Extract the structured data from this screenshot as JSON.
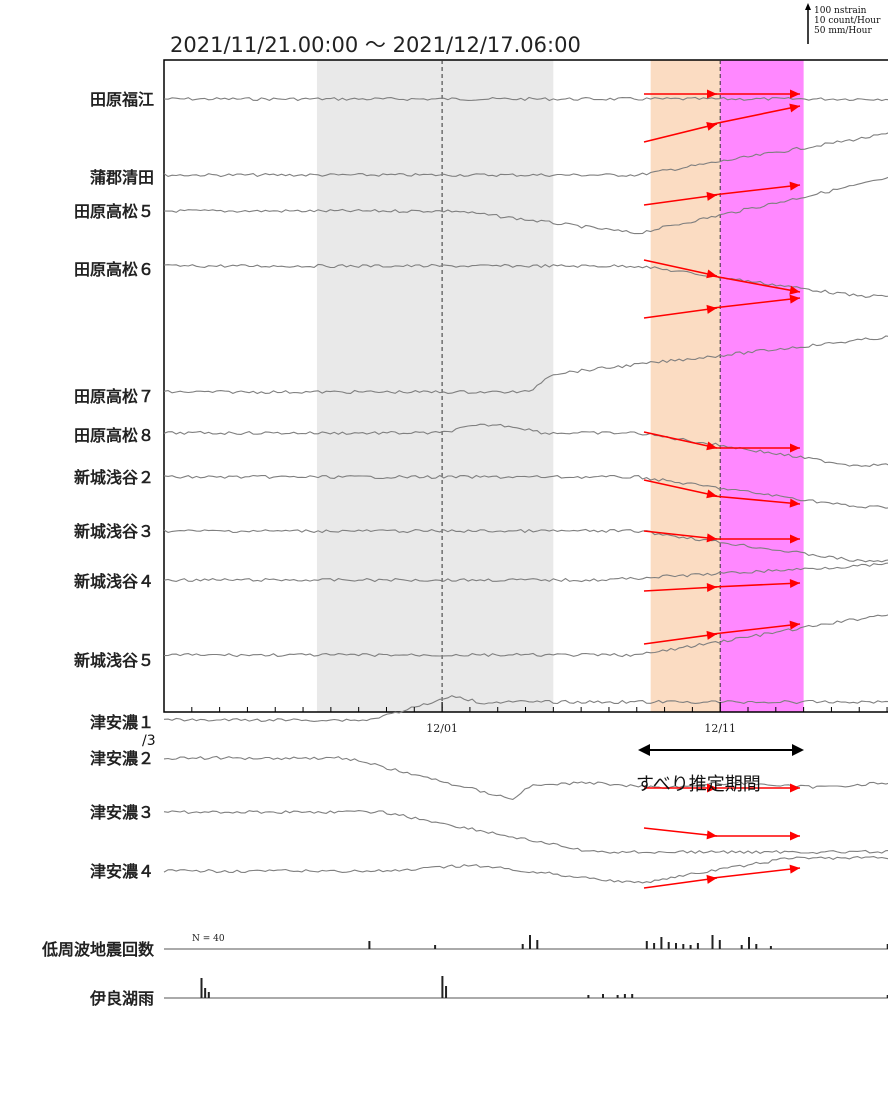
{
  "header": {
    "period": "2021/11/21.00:00 〜 2021/12/17.06:00",
    "scale_lines": [
      "100 nstrain",
      "10 count/Hour",
      "50 mm/Hour"
    ]
  },
  "footer": {
    "slip_period_label": "すべり推定期間"
  },
  "stray_mark": "/3",
  "colors": {
    "trace": "#7f7f7f",
    "gray_band": "#e9e9e9",
    "orange_band": "#fbdcc2",
    "magenta_band": "#ff88ff",
    "arrow": "#ff0000",
    "frame": "#000000"
  },
  "chart_data": {
    "type": "line",
    "time_range": [
      "2021-11-21 00:00",
      "2021-12-17 06:00"
    ],
    "x_ticks": [
      "12/01",
      "12/11"
    ],
    "highlight_periods": [
      {
        "name": "gray",
        "start": "2021-11-26 12:00",
        "end": "2021-12-05 00:00"
      },
      {
        "name": "orange",
        "start": "2021-12-08 12:00",
        "end": "2021-12-11 00:00"
      },
      {
        "name": "magenta",
        "start": "2021-12-11 00:00",
        "end": "2021-12-14 00:00"
      }
    ],
    "dashed_marker_dates": [
      "12/01",
      "12/11"
    ],
    "strain_series": [
      {
        "name": "田原福江",
        "pattern": "flat",
        "arrows": [
          {
            "x": "12/09",
            "dir": "flat"
          },
          {
            "x": "12/12",
            "dir": "flat"
          }
        ]
      },
      {
        "name": "蒲郡清田",
        "pattern": "rise_late",
        "arrows": [
          {
            "x": "12/09",
            "dir": "up"
          },
          {
            "x": "12/12",
            "dir": "up"
          }
        ]
      },
      {
        "name": "田原高松５",
        "pattern": "dip_then_rise",
        "arrows": [
          {
            "x": "12/09",
            "dir": "up_slight"
          },
          {
            "x": "12/12",
            "dir": "up_slight"
          }
        ]
      },
      {
        "name": "田原高松６",
        "pattern": "drop_late",
        "arrows": [
          {
            "x": "12/09",
            "dir": "down"
          },
          {
            "x": "12/12",
            "dir": "down"
          }
        ]
      },
      {
        "name": "田原高松７",
        "pattern": "step_up",
        "arrows": [
          {
            "x": "12/09",
            "dir": "up_slight"
          },
          {
            "x": "12/12",
            "dir": "up_slight"
          }
        ]
      },
      {
        "name": "田原高松８",
        "pattern": "hump_then_drop",
        "arrows": [
          {
            "x": "12/09",
            "dir": "down"
          },
          {
            "x": "12/12",
            "dir": "flat"
          }
        ]
      },
      {
        "name": "新城浅谷２",
        "pattern": "drop_late",
        "arrows": [
          {
            "x": "12/09",
            "dir": "down"
          },
          {
            "x": "12/12",
            "dir": "down_slight"
          }
        ]
      },
      {
        "name": "新城浅谷３",
        "pattern": "drop_late",
        "arrows": [
          {
            "x": "12/09",
            "dir": "down_slight"
          },
          {
            "x": "12/12",
            "dir": "flat"
          }
        ]
      },
      {
        "name": "新城浅谷４",
        "pattern": "slight_rise",
        "arrows": [
          {
            "x": "12/09",
            "dir": "flat_up"
          },
          {
            "x": "12/12",
            "dir": "flat_up"
          }
        ]
      },
      {
        "name": "新城浅谷５",
        "pattern": "rise_late",
        "arrows": [
          {
            "x": "12/09",
            "dir": "up_slight"
          },
          {
            "x": "12/12",
            "dir": "up_slight"
          }
        ]
      },
      {
        "name": "津安濃１",
        "pattern": "bump_mid",
        "arrows": []
      },
      {
        "name": "津安濃２",
        "pattern": "drop_mid_recover",
        "arrows": [
          {
            "x": "12/09",
            "dir": "flat"
          },
          {
            "x": "12/12",
            "dir": "flat"
          }
        ]
      },
      {
        "name": "津安濃３",
        "pattern": "drop_mid",
        "arrows": [
          {
            "x": "12/09",
            "dir": "down_slight"
          },
          {
            "x": "12/12",
            "dir": "flat"
          }
        ]
      },
      {
        "name": "津安濃４",
        "pattern": "bump_late",
        "arrows": [
          {
            "x": "12/09",
            "dir": "up_slight"
          },
          {
            "x": "12/12",
            "dir": "up_slight"
          }
        ]
      }
    ],
    "count_series": [
      {
        "name": "低周波地震回数",
        "n_label": "N = 40"
      },
      {
        "name": "伊良湖雨"
      }
    ]
  }
}
